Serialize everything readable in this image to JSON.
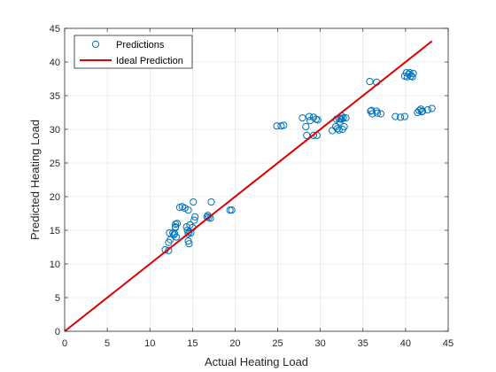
{
  "chart_data": {
    "type": "scatter",
    "title": "",
    "xlabel": "Actual Heating Load",
    "ylabel": "Predicted Heating Load",
    "xlim": [
      0,
      45
    ],
    "ylim": [
      0,
      45
    ],
    "xticks": [
      0,
      5,
      10,
      15,
      20,
      25,
      30,
      35,
      40,
      45
    ],
    "yticks": [
      0,
      5,
      10,
      15,
      20,
      25,
      30,
      35,
      40,
      45
    ],
    "xtick_labels": [
      "0",
      "5",
      "10",
      "15",
      "20",
      "25",
      "30",
      "35",
      "40",
      "45"
    ],
    "ytick_labels": [
      "0",
      "5",
      "10",
      "15",
      "20",
      "25",
      "30",
      "35",
      "40",
      "45"
    ],
    "grid": true,
    "legend": {
      "placement": "top-left",
      "entries": [
        "Predictions",
        "Ideal Prediction"
      ]
    },
    "series": [
      {
        "name": "Predictions",
        "kind": "scatter",
        "marker": "circle-open",
        "color": "#0072BD",
        "points": [
          [
            11.8,
            12.1
          ],
          [
            12.2,
            12.0
          ],
          [
            12.2,
            13.2
          ],
          [
            12.4,
            13.6
          ],
          [
            12.3,
            14.6
          ],
          [
            12.8,
            14.3
          ],
          [
            12.9,
            14.5
          ],
          [
            12.7,
            14.6
          ],
          [
            13.0,
            15.5
          ],
          [
            13.0,
            15.9
          ],
          [
            13.2,
            16.0
          ],
          [
            13.0,
            15.4
          ],
          [
            13.1,
            14.0
          ],
          [
            13.5,
            18.4
          ],
          [
            13.8,
            18.5
          ],
          [
            14.1,
            18.3
          ],
          [
            14.5,
            18.0
          ],
          [
            14.3,
            15.5
          ],
          [
            14.4,
            15.0
          ],
          [
            14.5,
            14.5
          ],
          [
            14.6,
            14.8
          ],
          [
            14.5,
            13.4
          ],
          [
            14.6,
            13.0
          ],
          [
            14.7,
            15.8
          ],
          [
            14.8,
            14.6
          ],
          [
            15.0,
            15.4
          ],
          [
            15.2,
            16.5
          ],
          [
            15.3,
            17.0
          ],
          [
            15.1,
            19.2
          ],
          [
            16.7,
            17.0
          ],
          [
            16.8,
            17.2
          ],
          [
            16.9,
            16.9
          ],
          [
            17.1,
            16.8
          ],
          [
            17.2,
            19.2
          ],
          [
            19.4,
            18.0
          ],
          [
            19.6,
            18.0
          ],
          [
            24.9,
            30.5
          ],
          [
            25.4,
            30.5
          ],
          [
            25.7,
            30.6
          ],
          [
            27.9,
            31.7
          ],
          [
            28.3,
            30.4
          ],
          [
            28.4,
            29.1
          ],
          [
            28.7,
            31.9
          ],
          [
            28.8,
            31.3
          ],
          [
            29.2,
            31.8
          ],
          [
            29.2,
            29.1
          ],
          [
            29.6,
            29.1
          ],
          [
            29.5,
            31.5
          ],
          [
            29.7,
            31.4
          ],
          [
            31.4,
            29.8
          ],
          [
            31.8,
            30.4
          ],
          [
            31.9,
            31.5
          ],
          [
            32.0,
            30.1
          ],
          [
            32.2,
            29.9
          ],
          [
            32.3,
            31.1
          ],
          [
            32.4,
            31.6
          ],
          [
            32.5,
            32.0
          ],
          [
            32.5,
            31.5
          ],
          [
            32.6,
            30.0
          ],
          [
            32.7,
            31.7
          ],
          [
            32.8,
            30.4
          ],
          [
            33.0,
            31.7
          ],
          [
            32.2,
            31.6
          ],
          [
            35.8,
            37.1
          ],
          [
            35.9,
            32.7
          ],
          [
            36.0,
            32.8
          ],
          [
            36.1,
            32.3
          ],
          [
            36.6,
            32.7
          ],
          [
            36.7,
            32.4
          ],
          [
            37.1,
            32.3
          ],
          [
            36.6,
            37.0
          ],
          [
            38.8,
            31.9
          ],
          [
            39.4,
            31.8
          ],
          [
            39.9,
            31.9
          ],
          [
            39.9,
            37.9
          ],
          [
            40.1,
            38.4
          ],
          [
            40.2,
            37.8
          ],
          [
            40.4,
            38.2
          ],
          [
            40.6,
            37.9
          ],
          [
            40.5,
            38.4
          ],
          [
            40.8,
            37.8
          ],
          [
            40.9,
            38.3
          ],
          [
            41.4,
            32.5
          ],
          [
            41.6,
            32.8
          ],
          [
            41.8,
            33.0
          ],
          [
            42.0,
            32.7
          ],
          [
            42.6,
            32.9
          ],
          [
            43.1,
            33.1
          ],
          [
            41.9,
            32.6
          ]
        ]
      },
      {
        "name": "Ideal Prediction",
        "kind": "line",
        "color": "#E00000",
        "points": [
          [
            0,
            0
          ],
          [
            43.1,
            43.1
          ]
        ]
      }
    ]
  }
}
